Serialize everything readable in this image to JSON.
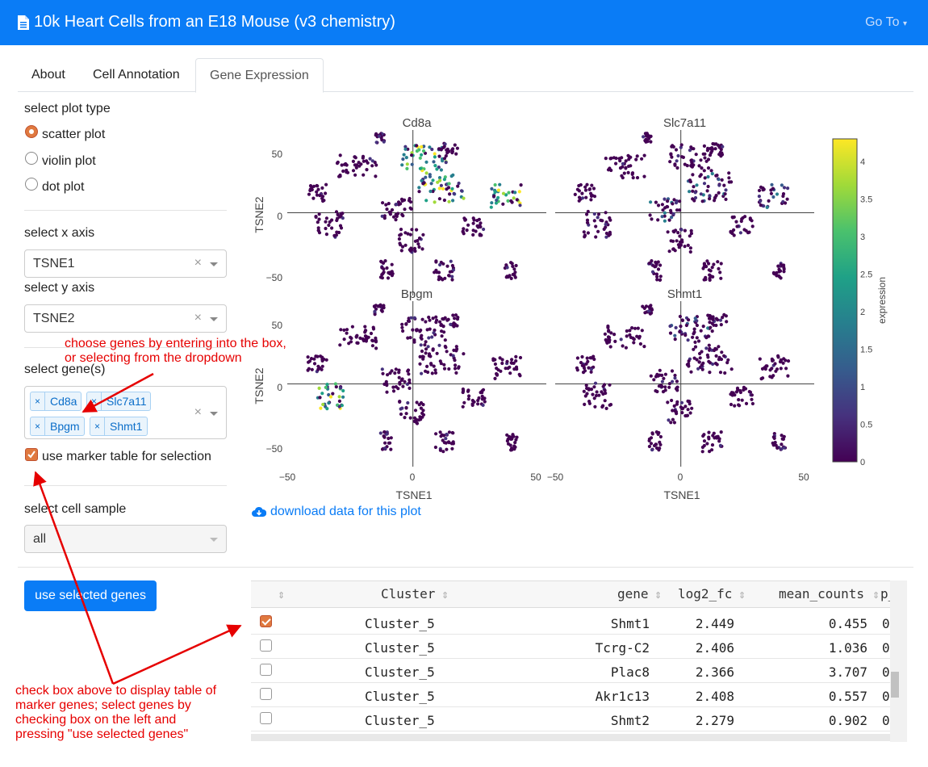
{
  "app": {
    "title": "10k Heart Cells from an E18 Mouse (v3 chemistry)",
    "goto": "Go To"
  },
  "tabs": [
    "About",
    "Cell Annotation",
    "Gene Expression"
  ],
  "sidebar": {
    "plot_type_label": "select plot type",
    "plot_types": [
      "scatter plot",
      "violin plot",
      "dot plot"
    ],
    "selected_plot_type": "scatter plot",
    "x_axis_label": "select x axis",
    "x_axis_value": "TSNE1",
    "y_axis_label": "select y axis",
    "y_axis_value": "TSNE2",
    "genes_label": "select gene(s)",
    "genes": [
      "Cd8a",
      "Slc7a11",
      "Bpgm",
      "Shmt1"
    ],
    "marker_checkbox_label": "use marker table for selection",
    "sample_label": "select cell sample",
    "sample_value": "all",
    "use_genes_button": "use selected genes",
    "clear_symbol": "×"
  },
  "plot": {
    "panels": [
      "Cd8a",
      "Slc7a11",
      "Bpgm",
      "Shmt1"
    ],
    "xlabel": "TSNE1",
    "ylabel": "TSNE2",
    "x_ticks": [
      "−50",
      "0",
      "50"
    ],
    "y_ticks": [
      "50",
      "0",
      "−50"
    ],
    "colorbar_title": "expression",
    "colorbar_ticks": [
      "4",
      "3.5",
      "3",
      "2.5",
      "2",
      "1.5",
      "1",
      "0.5",
      "0"
    ],
    "download_label": "download data for this plot"
  },
  "annotations": {
    "genes_note_line1": "choose genes by entering into the box,",
    "genes_note_line2": "or selecting from the dropdown",
    "table_note_line1": "check box above to display table of",
    "table_note_line2": "marker genes; select genes by",
    "table_note_line3": "checking box on the left and",
    "table_note_line4": "pressing \"use selected genes\""
  },
  "table": {
    "columns": [
      "Cluster",
      "gene",
      "log2_fc",
      "mean_counts",
      "p_a"
    ],
    "rows": [
      {
        "checked": true,
        "cluster": "Cluster_5",
        "gene": "Shmt1",
        "log2_fc": "2.449",
        "mean_counts": "0.455",
        "p": "0"
      },
      {
        "checked": false,
        "cluster": "Cluster_5",
        "gene": "Tcrg-C2",
        "log2_fc": "2.406",
        "mean_counts": "1.036",
        "p": "0"
      },
      {
        "checked": false,
        "cluster": "Cluster_5",
        "gene": "Plac8",
        "log2_fc": "2.366",
        "mean_counts": "3.707",
        "p": "0"
      },
      {
        "checked": false,
        "cluster": "Cluster_5",
        "gene": "Akr1c13",
        "log2_fc": "2.408",
        "mean_counts": "0.557",
        "p": "0"
      },
      {
        "checked": false,
        "cluster": "Cluster_5",
        "gene": "Shmt2",
        "log2_fc": "2.279",
        "mean_counts": "0.902",
        "p": "0"
      }
    ]
  },
  "colors": {
    "brand": "#0a7cf6",
    "annotation": "#e60000",
    "accent": "#e0793f"
  }
}
